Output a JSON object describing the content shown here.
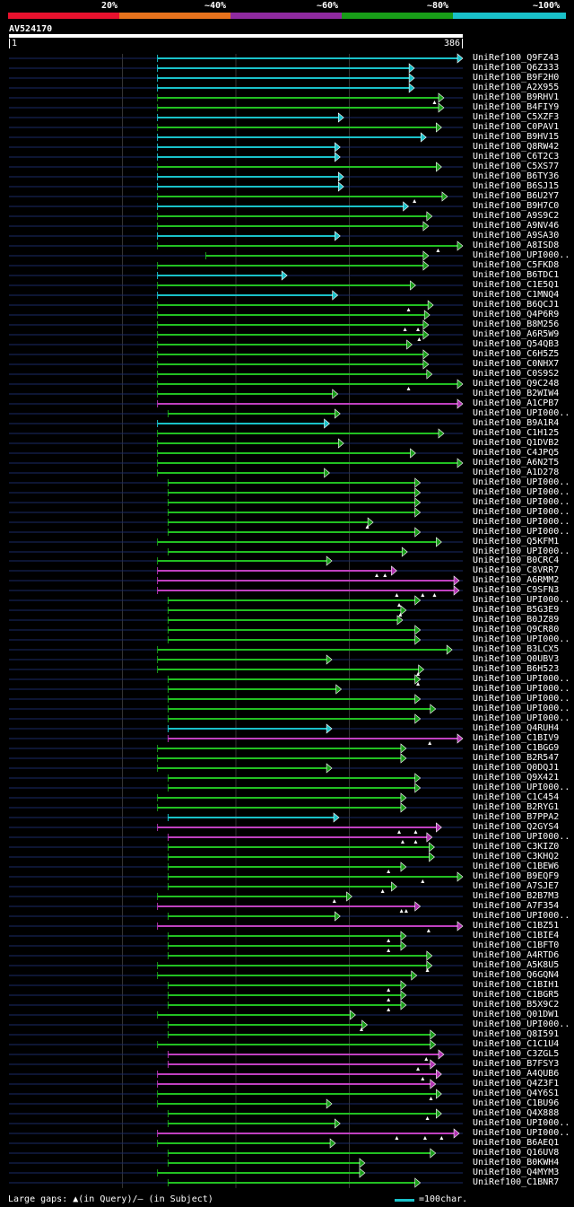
{
  "legend": {
    "segments": [
      {
        "label": "20%",
        "color": "#e8112d"
      },
      {
        "label": "~40%",
        "color": "#e7721c"
      },
      {
        "label": "~60%",
        "color": "#8f2aa0"
      },
      {
        "label": "~80%",
        "color": "#189d18"
      },
      {
        "label": "~100%",
        "color": "#19c1c9"
      }
    ]
  },
  "query": {
    "id": "AV524170",
    "start_label": "1",
    "end_label": "386",
    "length": 386
  },
  "footer": {
    "gap_note": "Large gaps: ▲(in Query)/– (in Subject)",
    "scale_note": "=100char."
  },
  "chart_data": {
    "type": "alignment-overview",
    "x_range": [
      1,
      386
    ],
    "hits": [
      {
        "name": "UniRef100_Q9FZ43",
        "start": 127,
        "end": 386,
        "color": "cyan",
        "gaps": []
      },
      {
        "name": "UniRef100_Q6Z333",
        "start": 127,
        "end": 345,
        "color": "cyan",
        "gaps": []
      },
      {
        "name": "UniRef100_B9F2H0",
        "start": 127,
        "end": 345,
        "color": "cyan",
        "gaps": []
      },
      {
        "name": "UniRef100_A2X955",
        "start": 127,
        "end": 345,
        "color": "cyan",
        "gaps": []
      },
      {
        "name": "UniRef100_B9RHV1",
        "start": 127,
        "end": 370,
        "color": "green",
        "gaps": [
          362
        ]
      },
      {
        "name": "UniRef100_B4FIY9",
        "start": 127,
        "end": 370,
        "color": "green",
        "gaps": []
      },
      {
        "name": "UniRef100_C5XZF3",
        "start": 127,
        "end": 285,
        "color": "cyan",
        "gaps": []
      },
      {
        "name": "UniRef100_C0PAV1",
        "start": 127,
        "end": 368,
        "color": "green",
        "gaps": []
      },
      {
        "name": "UniRef100_B9HV15",
        "start": 127,
        "end": 355,
        "color": "cyan",
        "gaps": []
      },
      {
        "name": "UniRef100_Q8RW42",
        "start": 127,
        "end": 282,
        "color": "cyan",
        "gaps": []
      },
      {
        "name": "UniRef100_C6T2C3",
        "start": 127,
        "end": 282,
        "color": "cyan",
        "gaps": []
      },
      {
        "name": "UniRef100_C5XS77",
        "start": 127,
        "end": 368,
        "color": "green",
        "gaps": []
      },
      {
        "name": "UniRef100_B6TY36",
        "start": 127,
        "end": 285,
        "color": "cyan",
        "gaps": []
      },
      {
        "name": "UniRef100_B6SJ15",
        "start": 127,
        "end": 285,
        "color": "cyan",
        "gaps": []
      },
      {
        "name": "UniRef100_B6U2Y7",
        "start": 127,
        "end": 373,
        "color": "green",
        "gaps": [
          345
        ]
      },
      {
        "name": "UniRef100_B9H7C0",
        "start": 127,
        "end": 340,
        "color": "cyan",
        "gaps": []
      },
      {
        "name": "UniRef100_A9S9C2",
        "start": 127,
        "end": 360,
        "color": "green",
        "gaps": []
      },
      {
        "name": "UniRef100_A9NV46",
        "start": 127,
        "end": 357,
        "color": "green",
        "gaps": []
      },
      {
        "name": "UniRef100_A9SA30",
        "start": 127,
        "end": 282,
        "color": "cyan",
        "gaps": []
      },
      {
        "name": "UniRef100_A8ISD8",
        "start": 127,
        "end": 386,
        "color": "green",
        "gaps": [
          365
        ]
      },
      {
        "name": "UniRef100_UPI000..",
        "start": 168,
        "end": 357,
        "color": "green",
        "gaps": []
      },
      {
        "name": "UniRef100_C5FKD8",
        "start": 127,
        "end": 357,
        "color": "green",
        "gaps": []
      },
      {
        "name": "UniRef100_B6TDC1",
        "start": 127,
        "end": 237,
        "color": "cyan",
        "gaps": []
      },
      {
        "name": "UniRef100_C1E5Q1",
        "start": 127,
        "end": 346,
        "color": "green",
        "gaps": []
      },
      {
        "name": "UniRef100_C1MNQ4",
        "start": 127,
        "end": 280,
        "color": "cyan",
        "gaps": []
      },
      {
        "name": "UniRef100_B6QCJ1",
        "start": 127,
        "end": 361,
        "color": "green",
        "gaps": [
          340
        ]
      },
      {
        "name": "UniRef100_Q4P6R9",
        "start": 127,
        "end": 358,
        "color": "green",
        "gaps": []
      },
      {
        "name": "UniRef100_B8M256",
        "start": 127,
        "end": 357,
        "color": "green",
        "gaps": [
          337,
          348
        ]
      },
      {
        "name": "UniRef100_A6R5W9",
        "start": 127,
        "end": 357,
        "color": "green",
        "gaps": [
          349
        ]
      },
      {
        "name": "UniRef100_Q54QB3",
        "start": 127,
        "end": 343,
        "color": "green",
        "gaps": []
      },
      {
        "name": "UniRef100_C6H5Z5",
        "start": 127,
        "end": 357,
        "color": "green",
        "gaps": []
      },
      {
        "name": "UniRef100_C0NHX7",
        "start": 127,
        "end": 357,
        "color": "green",
        "gaps": []
      },
      {
        "name": "UniRef100_C0S9S2",
        "start": 127,
        "end": 360,
        "color": "green",
        "gaps": []
      },
      {
        "name": "UniRef100_Q9C248",
        "start": 127,
        "end": 386,
        "color": "green",
        "gaps": [
          340
        ]
      },
      {
        "name": "UniRef100_B2WIW4",
        "start": 127,
        "end": 280,
        "color": "green",
        "gaps": []
      },
      {
        "name": "UniRef100_A1CPB7",
        "start": 127,
        "end": 386,
        "color": "magenta",
        "gaps": []
      },
      {
        "name": "UniRef100_UPI000..",
        "start": 136,
        "end": 282,
        "color": "green",
        "gaps": []
      },
      {
        "name": "UniRef100_B9A1R4",
        "start": 127,
        "end": 273,
        "color": "cyan",
        "gaps": []
      },
      {
        "name": "UniRef100_C1H125",
        "start": 127,
        "end": 370,
        "color": "green",
        "gaps": []
      },
      {
        "name": "UniRef100_Q1DVB2",
        "start": 127,
        "end": 285,
        "color": "green",
        "gaps": []
      },
      {
        "name": "UniRef100_C4JPQ5",
        "start": 127,
        "end": 346,
        "color": "green",
        "gaps": []
      },
      {
        "name": "UniRef100_A6N2T5",
        "start": 127,
        "end": 386,
        "color": "green",
        "gaps": []
      },
      {
        "name": "UniRef100_A1D278",
        "start": 127,
        "end": 273,
        "color": "green",
        "gaps": []
      },
      {
        "name": "UniRef100_UPI000..",
        "start": 136,
        "end": 350,
        "color": "green",
        "gaps": []
      },
      {
        "name": "UniRef100_UPI000..",
        "start": 136,
        "end": 350,
        "color": "green",
        "gaps": []
      },
      {
        "name": "UniRef100_UPI000..",
        "start": 136,
        "end": 350,
        "color": "green",
        "gaps": []
      },
      {
        "name": "UniRef100_UPI000..",
        "start": 136,
        "end": 350,
        "color": "green",
        "gaps": []
      },
      {
        "name": "UniRef100_UPI000..",
        "start": 136,
        "end": 310,
        "color": "green",
        "gaps": [
          305
        ]
      },
      {
        "name": "UniRef100_UPI000..",
        "start": 136,
        "end": 350,
        "color": "green",
        "gaps": []
      },
      {
        "name": "UniRef100_Q5KFM1",
        "start": 127,
        "end": 368,
        "color": "green",
        "gaps": []
      },
      {
        "name": "UniRef100_UPI000..",
        "start": 136,
        "end": 339,
        "color": "green",
        "gaps": []
      },
      {
        "name": "UniRef100_B0CRC4",
        "start": 127,
        "end": 275,
        "color": "green",
        "gaps": []
      },
      {
        "name": "UniRef100_C8VRR7",
        "start": 127,
        "end": 330,
        "color": "magenta",
        "gaps": [
          313,
          320
        ]
      },
      {
        "name": "UniRef100_A6RMM2",
        "start": 127,
        "end": 383,
        "color": "magenta",
        "gaps": []
      },
      {
        "name": "UniRef100_C9SFN3",
        "start": 127,
        "end": 383,
        "color": "magenta",
        "gaps": [
          330,
          352,
          362
        ]
      },
      {
        "name": "UniRef100_UPI000..",
        "start": 136,
        "end": 350,
        "color": "green",
        "gaps": [
          332
        ]
      },
      {
        "name": "UniRef100_B5G3E9",
        "start": 136,
        "end": 338,
        "color": "green",
        "gaps": [
          333
        ]
      },
      {
        "name": "UniRef100_B0JZ89",
        "start": 136,
        "end": 335,
        "color": "green",
        "gaps": []
      },
      {
        "name": "UniRef100_Q9CR80",
        "start": 136,
        "end": 350,
        "color": "green",
        "gaps": []
      },
      {
        "name": "UniRef100_UPI000..",
        "start": 136,
        "end": 350,
        "color": "green",
        "gaps": []
      },
      {
        "name": "UniRef100_B3LCX5",
        "start": 127,
        "end": 377,
        "color": "green",
        "gaps": []
      },
      {
        "name": "UniRef100_Q0UBV3",
        "start": 127,
        "end": 275,
        "color": "green",
        "gaps": []
      },
      {
        "name": "UniRef100_B6H523",
        "start": 127,
        "end": 353,
        "color": "green",
        "gaps": [
          348
        ]
      },
      {
        "name": "UniRef100_UPI000..",
        "start": 136,
        "end": 350,
        "color": "green",
        "gaps": [
          348
        ]
      },
      {
        "name": "UniRef100_UPI000..",
        "start": 136,
        "end": 283,
        "color": "green",
        "gaps": []
      },
      {
        "name": "UniRef100_UPI000..",
        "start": 136,
        "end": 350,
        "color": "green",
        "gaps": []
      },
      {
        "name": "UniRef100_UPI000..",
        "start": 136,
        "end": 363,
        "color": "green",
        "gaps": []
      },
      {
        "name": "UniRef100_UPI000..",
        "start": 136,
        "end": 350,
        "color": "green",
        "gaps": []
      },
      {
        "name": "UniRef100_Q4RUH4",
        "start": 136,
        "end": 275,
        "color": "cyan",
        "gaps": []
      },
      {
        "name": "UniRef100_C1BIV9",
        "start": 136,
        "end": 386,
        "color": "magenta",
        "gaps": [
          358
        ]
      },
      {
        "name": "UniRef100_C1BGG9",
        "start": 127,
        "end": 338,
        "color": "green",
        "gaps": []
      },
      {
        "name": "UniRef100_B2R547",
        "start": 127,
        "end": 338,
        "color": "green",
        "gaps": []
      },
      {
        "name": "UniRef100_Q0DQJ1",
        "start": 127,
        "end": 275,
        "color": "green",
        "gaps": []
      },
      {
        "name": "UniRef100_Q9X421",
        "start": 136,
        "end": 350,
        "color": "green",
        "gaps": []
      },
      {
        "name": "UniRef100_UPI000..",
        "start": 136,
        "end": 350,
        "color": "green",
        "gaps": []
      },
      {
        "name": "UniRef100_C1C454",
        "start": 127,
        "end": 338,
        "color": "green",
        "gaps": []
      },
      {
        "name": "UniRef100_B2RYG1",
        "start": 127,
        "end": 338,
        "color": "green",
        "gaps": []
      },
      {
        "name": "UniRef100_B7PPA2",
        "start": 136,
        "end": 281,
        "color": "cyan",
        "gaps": []
      },
      {
        "name": "UniRef100_Q2GYS4",
        "start": 127,
        "end": 368,
        "color": "magenta",
        "gaps": [
          332,
          346
        ]
      },
      {
        "name": "UniRef100_UPI000..",
        "start": 136,
        "end": 360,
        "color": "magenta",
        "gaps": [
          335,
          346
        ]
      },
      {
        "name": "UniRef100_C3KIZ0",
        "start": 136,
        "end": 362,
        "color": "green",
        "gaps": []
      },
      {
        "name": "UniRef100_C3KHQ2",
        "start": 136,
        "end": 362,
        "color": "green",
        "gaps": []
      },
      {
        "name": "UniRef100_C1BEW6",
        "start": 136,
        "end": 338,
        "color": "green",
        "gaps": [
          323
        ]
      },
      {
        "name": "UniRef100_B9EQF9",
        "start": 136,
        "end": 386,
        "color": "green",
        "gaps": [
          352
        ]
      },
      {
        "name": "UniRef100_A7SJE7",
        "start": 136,
        "end": 330,
        "color": "green",
        "gaps": [
          318
        ]
      },
      {
        "name": "UniRef100_B2B7M3",
        "start": 127,
        "end": 292,
        "color": "green",
        "gaps": [
          277
        ]
      },
      {
        "name": "UniRef100_A7F354",
        "start": 127,
        "end": 350,
        "color": "magenta",
        "gaps": [
          334,
          338
        ]
      },
      {
        "name": "UniRef100_UPI000..",
        "start": 136,
        "end": 282,
        "color": "green",
        "gaps": []
      },
      {
        "name": "UniRef100_C1BZ51",
        "start": 127,
        "end": 386,
        "color": "magenta",
        "gaps": [
          357
        ]
      },
      {
        "name": "UniRef100_C1BIE4",
        "start": 136,
        "end": 338,
        "color": "green",
        "gaps": [
          323
        ]
      },
      {
        "name": "UniRef100_C1BFT0",
        "start": 136,
        "end": 338,
        "color": "green",
        "gaps": [
          323
        ]
      },
      {
        "name": "UniRef100_A4RTD6",
        "start": 136,
        "end": 360,
        "color": "green",
        "gaps": []
      },
      {
        "name": "UniRef100_A5K8U5",
        "start": 127,
        "end": 360,
        "color": "green",
        "gaps": [
          356
        ]
      },
      {
        "name": "UniRef100_Q6GQN4",
        "start": 127,
        "end": 347,
        "color": "green",
        "gaps": []
      },
      {
        "name": "UniRef100_C1BIH1",
        "start": 136,
        "end": 338,
        "color": "green",
        "gaps": [
          323
        ]
      },
      {
        "name": "UniRef100_C1BGR5",
        "start": 136,
        "end": 338,
        "color": "green",
        "gaps": [
          323
        ]
      },
      {
        "name": "UniRef100_B5X9C2",
        "start": 136,
        "end": 338,
        "color": "green",
        "gaps": [
          323
        ]
      },
      {
        "name": "UniRef100_Q01DW1",
        "start": 127,
        "end": 295,
        "color": "green",
        "gaps": []
      },
      {
        "name": "UniRef100_UPI000..",
        "start": 136,
        "end": 305,
        "color": "green",
        "gaps": [
          300
        ]
      },
      {
        "name": "UniRef100_Q8I591",
        "start": 136,
        "end": 363,
        "color": "green",
        "gaps": []
      },
      {
        "name": "UniRef100_C1C1U4",
        "start": 127,
        "end": 363,
        "color": "green",
        "gaps": []
      },
      {
        "name": "UniRef100_C3ZGL5",
        "start": 136,
        "end": 370,
        "color": "magenta",
        "gaps": [
          355
        ]
      },
      {
        "name": "UniRef100_B7FSY3",
        "start": 136,
        "end": 363,
        "color": "magenta",
        "gaps": [
          348
        ]
      },
      {
        "name": "UniRef100_A4QUB6",
        "start": 127,
        "end": 368,
        "color": "magenta",
        "gaps": [
          352
        ]
      },
      {
        "name": "UniRef100_Q4Z3F1",
        "start": 127,
        "end": 363,
        "color": "magenta",
        "gaps": []
      },
      {
        "name": "UniRef100_Q4Y6S1",
        "start": 127,
        "end": 368,
        "color": "green",
        "gaps": [
          359
        ]
      },
      {
        "name": "UniRef100_C1BU96",
        "start": 127,
        "end": 275,
        "color": "green",
        "gaps": []
      },
      {
        "name": "UniRef100_Q4X888",
        "start": 136,
        "end": 368,
        "color": "green",
        "gaps": [
          356
        ]
      },
      {
        "name": "UniRef100_UPI000..",
        "start": 136,
        "end": 282,
        "color": "green",
        "gaps": []
      },
      {
        "name": "UniRef100_UPI000..",
        "start": 127,
        "end": 383,
        "color": "magenta",
        "gaps": [
          330,
          354,
          368
        ]
      },
      {
        "name": "UniRef100_B6AEQ1",
        "start": 127,
        "end": 278,
        "color": "green",
        "gaps": []
      },
      {
        "name": "UniRef100_Q16UV8",
        "start": 136,
        "end": 363,
        "color": "green",
        "gaps": []
      },
      {
        "name": "UniRef100_B0KWH4",
        "start": 136,
        "end": 303,
        "color": "green",
        "gaps": []
      },
      {
        "name": "UniRef100_Q4MYM3",
        "start": 127,
        "end": 303,
        "color": "green",
        "gaps": []
      },
      {
        "name": "UniRef100_C1BNR7",
        "start": 136,
        "end": 350,
        "color": "green",
        "gaps": []
      }
    ]
  }
}
